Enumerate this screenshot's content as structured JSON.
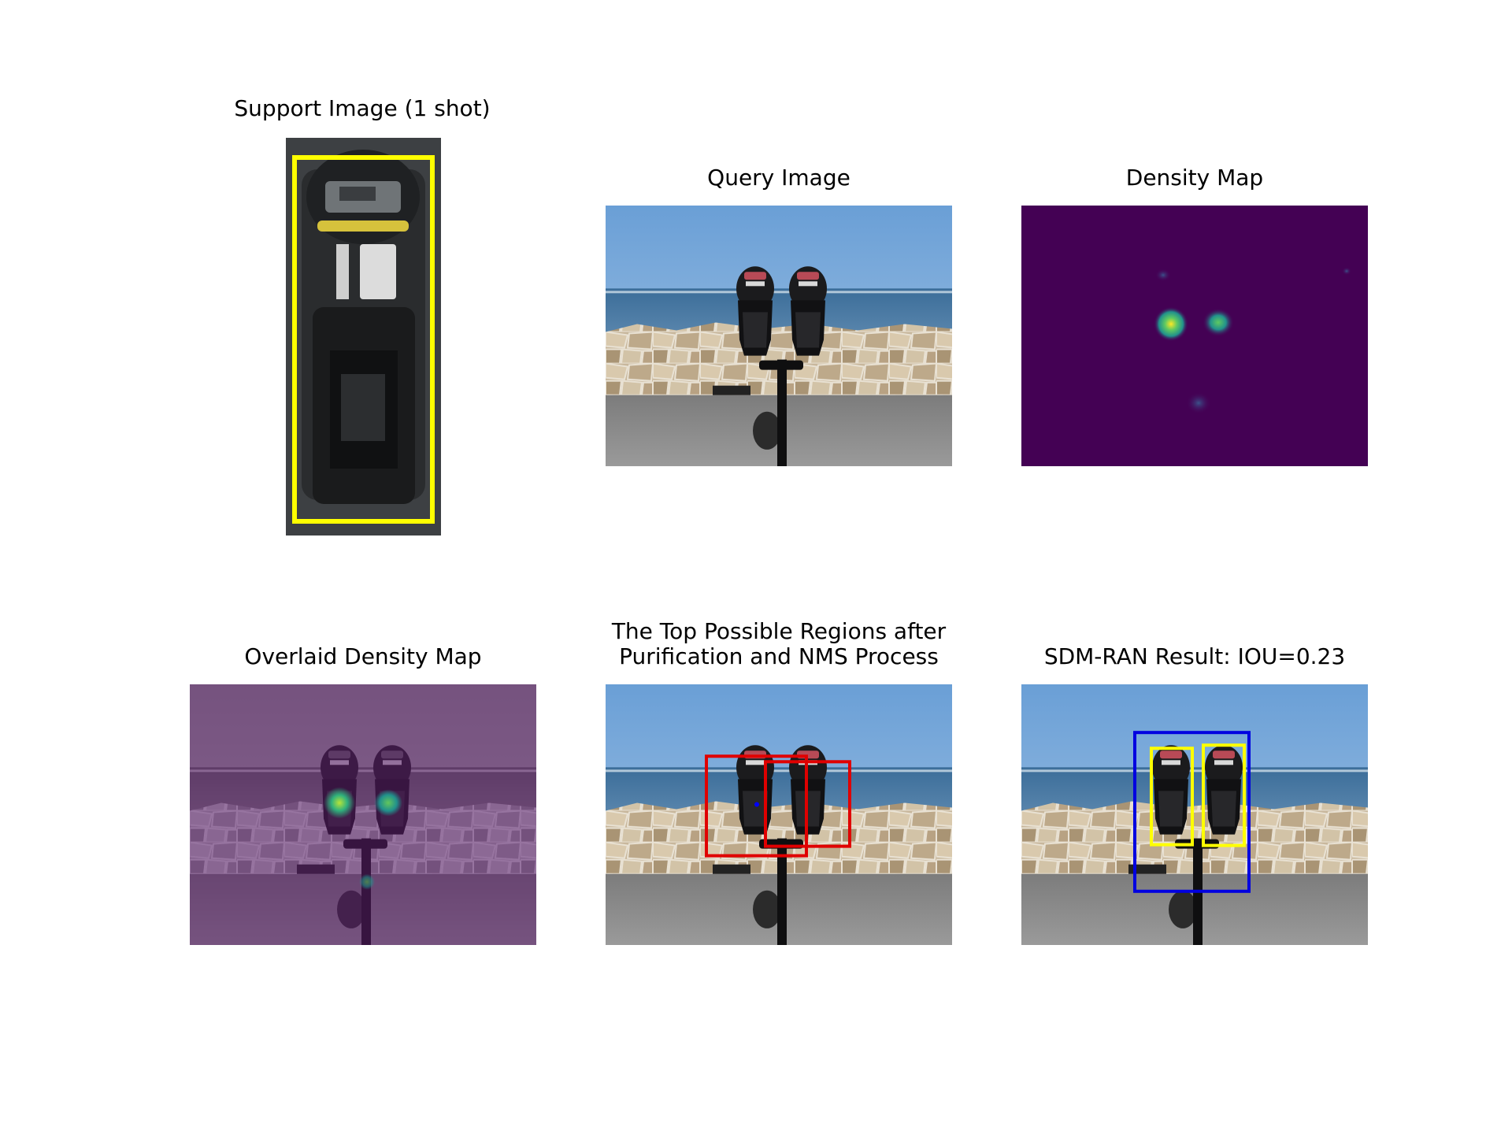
{
  "panels": {
    "support": {
      "title": "Support Image (1 shot)"
    },
    "query": {
      "title": "Query Image"
    },
    "density": {
      "title": "Density Map"
    },
    "overlaid": {
      "title": "Overlaid Density Map"
    },
    "regions": {
      "title_line1": "The Top Possible Regions after",
      "title_line2": "Purification and NMS Process"
    },
    "result": {
      "title": "SDM-RAN Result: IOU=0.23"
    }
  },
  "colors": {
    "support_box": "#ffff00",
    "region_box": "#e00000",
    "ground_truth_box": "#ffff00",
    "prediction_box": "#0000e0",
    "density_background": "#440154"
  }
}
